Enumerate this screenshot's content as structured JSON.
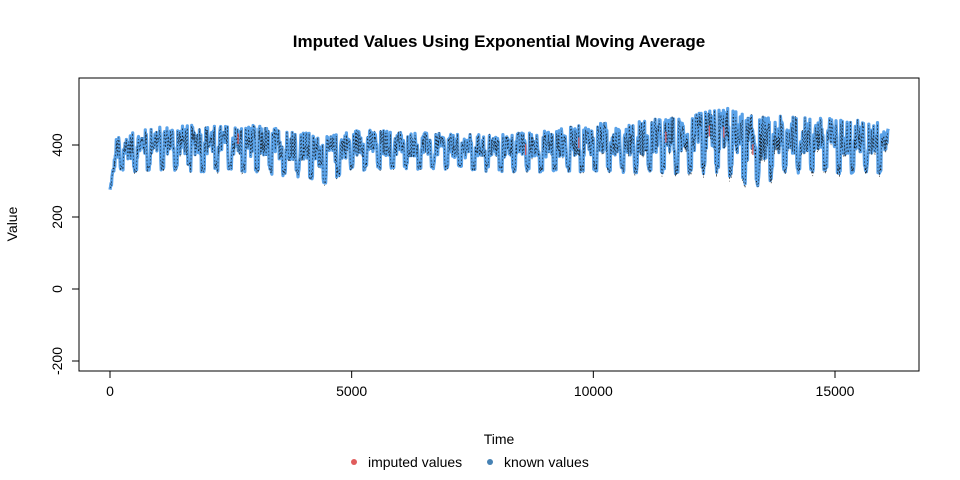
{
  "chart_data": {
    "type": "line",
    "title": "Imputed Values Using Exponential Moving Average",
    "xlabel": "Time",
    "ylabel": "Value",
    "xlim": [
      0,
      16500
    ],
    "ylim": [
      -200,
      550
    ],
    "x_ticks": [
      0,
      5000,
      10000,
      15000
    ],
    "x_tick_labels": [
      "0",
      "5000",
      "10000",
      "15000"
    ],
    "y_ticks": [
      -200,
      0,
      200,
      400
    ],
    "y_tick_labels": [
      "-200",
      "0",
      "200",
      "400"
    ],
    "grid": false,
    "legend_position": "bottom-center",
    "series": [
      {
        "name": "known values",
        "color": "#5aa2e8",
        "marker_color": "#4682b4",
        "x_range": [
          0,
          16100
        ],
        "approx_profile": [
          {
            "x": 0,
            "low": 245,
            "high": 300
          },
          {
            "x": 120,
            "low": 320,
            "high": 420
          },
          {
            "x": 1000,
            "low": 330,
            "high": 455
          },
          {
            "x": 2000,
            "low": 325,
            "high": 455
          },
          {
            "x": 3000,
            "low": 320,
            "high": 455
          },
          {
            "x": 4000,
            "low": 310,
            "high": 440
          },
          {
            "x": 4400,
            "low": 290,
            "high": 420
          },
          {
            "x": 5000,
            "low": 330,
            "high": 445
          },
          {
            "x": 6000,
            "low": 330,
            "high": 440
          },
          {
            "x": 7000,
            "low": 330,
            "high": 430
          },
          {
            "x": 8000,
            "low": 325,
            "high": 430
          },
          {
            "x": 9000,
            "low": 325,
            "high": 440
          },
          {
            "x": 10000,
            "low": 325,
            "high": 460
          },
          {
            "x": 11000,
            "low": 320,
            "high": 470
          },
          {
            "x": 12000,
            "low": 320,
            "high": 480
          },
          {
            "x": 12700,
            "low": 320,
            "high": 510
          },
          {
            "x": 13300,
            "low": 280,
            "high": 480
          },
          {
            "x": 14000,
            "low": 320,
            "high": 480
          },
          {
            "x": 15000,
            "low": 320,
            "high": 475
          },
          {
            "x": 16100,
            "low": 320,
            "high": 465
          }
        ],
        "cycle_period": 280,
        "dark_overlay_color": "#111111"
      },
      {
        "name": "imputed values",
        "color": "#e05c5c",
        "x_range": [
          0,
          16100
        ],
        "sparse": true
      }
    ],
    "legend": [
      {
        "label": "imputed values",
        "color": "#e05c5c"
      },
      {
        "label": "known values",
        "color": "#4682b4"
      }
    ]
  }
}
